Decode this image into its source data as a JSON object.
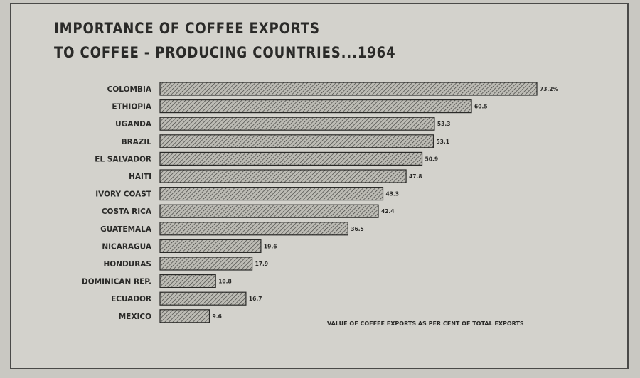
{
  "chart_data": {
    "type": "bar",
    "orientation": "horizontal",
    "title_lines": [
      "IMPORTANCE OF COFFEE EXPORTS",
      "TO COFFEE - PRODUCING COUNTRIES...1964"
    ],
    "categories": [
      "COLOMBIA",
      "ETHIOPIA",
      "UGANDA",
      "BRAZIL",
      "EL SALVADOR",
      "HAITI",
      "IVORY COAST",
      "COSTA RICA",
      "GUATEMALA",
      "NICARAGUA",
      "HONDURAS",
      "DOMINICAN REP.",
      "ECUADOR",
      "MEXICO"
    ],
    "values": [
      73.2,
      60.5,
      53.3,
      53.1,
      50.9,
      47.8,
      43.3,
      42.4,
      36.5,
      19.6,
      17.9,
      10.8,
      16.7,
      9.6
    ],
    "value_labels": [
      "73.2%",
      "60.5",
      "53.3",
      "53.1",
      "50.9",
      "47.8",
      "43.3",
      "42.4",
      "36.5",
      "19.6",
      "17.9",
      "10.8",
      "16.7",
      "9.6"
    ],
    "note": "VALUE OF COFFEE EXPORTS AS PER CENT OF TOTAL EXPORTS",
    "xlim": [
      0,
      73.2
    ],
    "grid": false,
    "bar_fill": "hatched",
    "colors": {
      "ink": "#2a2a28",
      "bar_fill": "#b9b8b1",
      "paper": "#d3d2cc"
    }
  }
}
